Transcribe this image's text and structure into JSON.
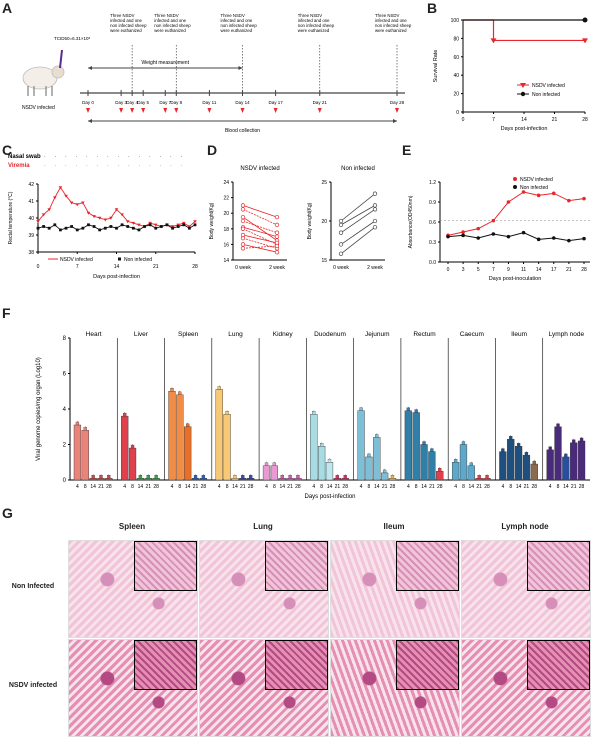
{
  "panels": {
    "A": {
      "label": "A",
      "dose": "TCID50=6.31×10⁶",
      "sheep_label": "NSDV infected",
      "weight_label": "Weight measurement",
      "blood_label": "Blood collection",
      "days": [
        "Day 0",
        "Day 3",
        "Day 4",
        "Day 5",
        "Day 7",
        "Day 8",
        "Day 11",
        "Day 14",
        "Day 17",
        "Day 21",
        "Day 28"
      ],
      "events": [
        "Three NSDV infected and one non infected sheep were euthanized",
        "Three NSDV infected and one non infected sheep were euthanized",
        "Three NSDV infected and one non infected sheep were euthanized",
        "Three NSDV infected and one non infected sheep were euthanized",
        "Three NSDV infected and one non infected sheep were euthanized"
      ]
    },
    "B": {
      "label": "B",
      "ylabel": "Survival Rate",
      "xlabel": "Days post-infection",
      "yticks": [
        "0",
        "20",
        "40",
        "60",
        "80",
        "100"
      ],
      "xticks": [
        "0",
        "7",
        "14",
        "21",
        "28"
      ],
      "legend": [
        "NSDV infected",
        "Non infected"
      ]
    },
    "C": {
      "label": "C",
      "nasal": "Nasal swab",
      "viremia": "Viremia",
      "ylabel": "Rectal temperature (°C)",
      "xlabel": "Days post-infection",
      "yticks": [
        "38",
        "39",
        "40",
        "41",
        "42"
      ],
      "xticks": [
        "0",
        "7",
        "14",
        "21",
        "28"
      ],
      "legend": [
        "NSDV infected",
        "Non infected"
      ]
    },
    "D": {
      "label": "D",
      "title1": "NSDV infected",
      "title2": "Non infected",
      "ylabel": "Body weight(Kg)",
      "yticks1": [
        "14",
        "16",
        "18",
        "20",
        "22",
        "24"
      ],
      "yticks2": [
        "15",
        "20",
        "25"
      ],
      "xticks": [
        "0 week",
        "2 week"
      ]
    },
    "E": {
      "label": "E",
      "ylabel": "Absorbance(OD450nm)",
      "xlabel": "Days post-inoculation",
      "yticks": [
        "0.0",
        "0.3",
        "0.6",
        "0.9",
        "1.2"
      ],
      "xticks": [
        "0",
        "3",
        "5",
        "7",
        "9",
        "11",
        "14",
        "17",
        "21",
        "28"
      ],
      "legend": [
        "NSDV infected",
        "Non infected"
      ]
    },
    "F": {
      "label": "F",
      "ylabel": "Viral genome copies/mg organ (Log10)",
      "xlabel": "Days post-infection",
      "yticks": [
        "0",
        "2",
        "4",
        "6",
        "8"
      ],
      "xticks": [
        "4",
        "8",
        "14",
        "21",
        "28"
      ],
      "organs": [
        "Heart",
        "Liver",
        "Spleen",
        "Lung",
        "Kidney",
        "Duodenum",
        "Jejunum",
        "Rectum",
        "Caecum",
        "Ileum",
        "Lymph node"
      ]
    },
    "G": {
      "label": "G",
      "columns": [
        "Spleen",
        "Lung",
        "Ileum",
        "Lymph node"
      ],
      "rows": [
        "Non Infected",
        "NSDV infected"
      ]
    }
  },
  "colors": {
    "infected": "#e8262c",
    "noninfected": "#111111",
    "histo_bg": "#f1c4d8",
    "histo_dark": "#b45b9a"
  },
  "chart_data": [
    {
      "panel": "B",
      "type": "line",
      "x": [
        0,
        7,
        28
      ],
      "series": [
        {
          "name": "NSDV infected",
          "values": [
            100,
            77.8,
            77.8
          ]
        },
        {
          "name": "Non infected",
          "values": [
            100,
            100,
            100
          ]
        }
      ],
      "ylim": [
        0,
        100
      ],
      "xlim": [
        0,
        28
      ]
    },
    {
      "panel": "C",
      "type": "line",
      "x": [
        0,
        1,
        2,
        3,
        4,
        5,
        6,
        7,
        8,
        9,
        10,
        11,
        12,
        13,
        14,
        15,
        16,
        17,
        18,
        19,
        20,
        21,
        22,
        23,
        24,
        25,
        26,
        27,
        28
      ],
      "series": [
        {
          "name": "NSDV infected",
          "values": [
            39.8,
            40.2,
            40.5,
            41.2,
            41.8,
            41.3,
            40.9,
            40.8,
            40.9,
            40.3,
            40.1,
            40.0,
            39.9,
            40.0,
            40.5,
            40.2,
            39.8,
            39.7,
            39.6,
            39.5,
            39.7,
            39.6,
            39.5,
            39.6,
            39.5,
            39.6,
            39.7,
            39.5,
            39.8
          ]
        },
        {
          "name": "Non infected",
          "values": [
            39.4,
            39.5,
            39.4,
            39.6,
            39.3,
            39.4,
            39.5,
            39.3,
            39.4,
            39.6,
            39.5,
            39.3,
            39.4,
            39.5,
            39.4,
            39.6,
            39.5,
            39.4,
            39.3,
            39.5,
            39.6,
            39.4,
            39.5,
            39.6,
            39.4,
            39.5,
            39.6,
            39.4,
            39.6
          ]
        }
      ],
      "ylim": [
        38,
        42
      ],
      "xlim": [
        0,
        28
      ]
    },
    {
      "panel": "D",
      "type": "line",
      "series": [
        {
          "name": "NSDV infected",
          "pairs": [
            [
              21,
              19.5
            ],
            [
              20.5,
              18.5
            ],
            [
              19.5,
              16.5
            ],
            [
              19,
              17.5
            ],
            [
              18.2,
              17
            ],
            [
              18,
              16
            ],
            [
              17.2,
              16.2
            ],
            [
              16.8,
              15.5
            ],
            [
              16,
              15
            ],
            [
              15.5,
              15.8
            ]
          ]
        },
        {
          "name": "Non infected",
          "pairs": [
            [
              20,
              23.5
            ],
            [
              19.5,
              22
            ],
            [
              18.5,
              21.5
            ],
            [
              17,
              20
            ],
            [
              15.8,
              19.2
            ]
          ]
        }
      ],
      "ylim": [
        [
          14,
          24
        ],
        [
          15,
          25
        ]
      ]
    },
    {
      "panel": "E",
      "type": "line",
      "categories": [
        "0",
        "3",
        "5",
        "7",
        "9",
        "11",
        "14",
        "17",
        "21",
        "28"
      ],
      "series": [
        {
          "name": "NSDV infected",
          "values": [
            0.4,
            0.45,
            0.5,
            0.62,
            0.9,
            1.05,
            1.0,
            1.03,
            0.92,
            0.95
          ]
        },
        {
          "name": "Non infected",
          "values": [
            0.38,
            0.4,
            0.36,
            0.42,
            0.38,
            0.44,
            0.34,
            0.36,
            0.32,
            0.35
          ]
        }
      ],
      "ylim": [
        0,
        1.2
      ]
    },
    {
      "panel": "F",
      "type": "bar",
      "categories": [
        "4",
        "8",
        "14",
        "21",
        "28"
      ],
      "series": [
        {
          "name": "Heart",
          "values": [
            3.1,
            2.8,
            0.1,
            0.1,
            0.1
          ]
        },
        {
          "name": "Liver",
          "values": [
            3.6,
            1.8,
            0.1,
            0.1,
            0.1
          ]
        },
        {
          "name": "Spleen",
          "values": [
            5.0,
            4.8,
            3.0,
            0.1,
            0.1
          ]
        },
        {
          "name": "Lung",
          "values": [
            5.1,
            3.7,
            0.1,
            0.1,
            0.1
          ]
        },
        {
          "name": "Kidney",
          "values": [
            0.8,
            0.8,
            0.1,
            0.1,
            0.1
          ]
        },
        {
          "name": "Duodenum",
          "values": [
            3.7,
            1.9,
            1.0,
            0.1,
            0.1
          ]
        },
        {
          "name": "Jejunum",
          "values": [
            3.9,
            1.3,
            2.4,
            0.4,
            0.1
          ]
        },
        {
          "name": "Rectum",
          "values": [
            3.9,
            3.8,
            2.0,
            1.6,
            0.5
          ]
        },
        {
          "name": "Caecum",
          "values": [
            1.0,
            2.0,
            0.8,
            0.1,
            0.1
          ]
        },
        {
          "name": "Ileum",
          "values": [
            1.6,
            2.3,
            1.9,
            1.4,
            0.9
          ]
        },
        {
          "name": "Lymph node",
          "values": [
            1.7,
            3.0,
            1.3,
            2.1,
            2.2
          ]
        }
      ],
      "ylim": [
        0,
        8
      ]
    }
  ]
}
